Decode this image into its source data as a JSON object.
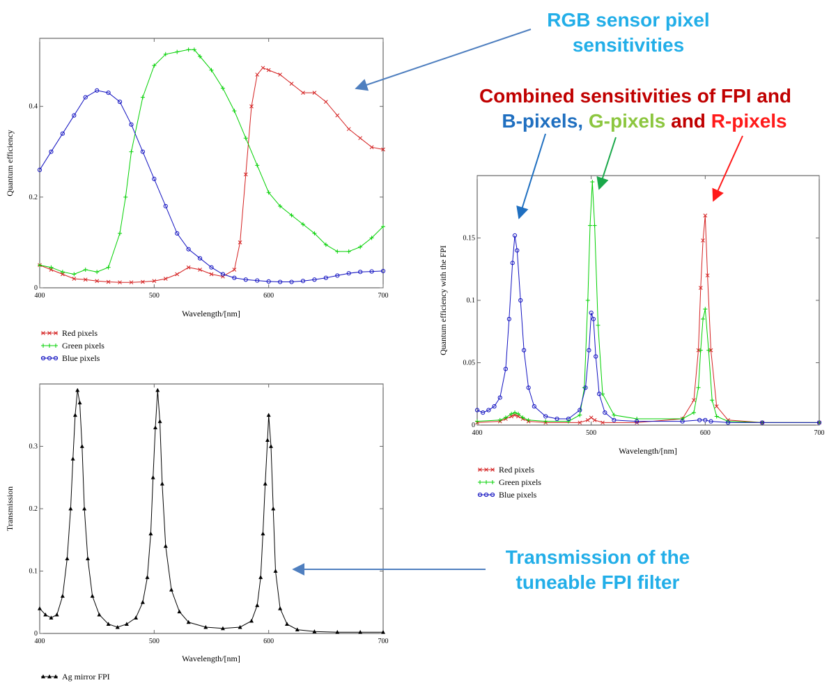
{
  "annotations": {
    "rgb_title_line1": "RGB sensor pixel",
    "rgb_title_line2": "sensitivities",
    "combined_line1": "Combined sensitivities of FPI and",
    "combined_b": "B-pixels",
    "combined_comma": ", ",
    "combined_g": "G-pixels",
    "combined_and": " and ",
    "combined_r": "R-pixels",
    "fpi_line1": "Transmission of the",
    "fpi_line2": "tuneable FPI filter",
    "colors": {
      "cyan": "#22AEE8",
      "darkred": "#C00000",
      "blue": "#1F6FC0",
      "lightgreen": "#8CC63F",
      "red": "#FF1A1A",
      "green": "#1AA84A",
      "arrow": "#4F7FBF"
    }
  },
  "chart_data": [
    {
      "id": "rgb",
      "type": "line",
      "xlabel": "Wavelength/[nm]",
      "ylabel": "Quantum efficiency",
      "xlim": [
        400,
        700
      ],
      "ylim": [
        0,
        0.55
      ],
      "xticks": [
        400,
        500,
        600,
        700
      ],
      "yticks": [
        0,
        0.2,
        0.4
      ],
      "xtick_labels": [
        "400",
        "500",
        "600",
        "700"
      ],
      "ytick_labels": [
        "0",
        "0.2",
        "0.4"
      ],
      "grid": false,
      "legend_position": "below",
      "series": [
        {
          "name": "Red pixels",
          "color": "#D42020",
          "marker": "x",
          "x": [
            400,
            410,
            420,
            430,
            440,
            450,
            460,
            470,
            480,
            490,
            500,
            510,
            520,
            530,
            540,
            550,
            560,
            570,
            575,
            580,
            585,
            590,
            595,
            600,
            610,
            620,
            630,
            640,
            650,
            660,
            670,
            680,
            690,
            700
          ],
          "y": [
            0.05,
            0.04,
            0.03,
            0.02,
            0.018,
            0.015,
            0.013,
            0.012,
            0.012,
            0.013,
            0.015,
            0.02,
            0.03,
            0.045,
            0.04,
            0.03,
            0.025,
            0.04,
            0.1,
            0.25,
            0.4,
            0.47,
            0.485,
            0.48,
            0.47,
            0.45,
            0.43,
            0.43,
            0.41,
            0.38,
            0.35,
            0.33,
            0.31,
            0.305
          ]
        },
        {
          "name": "Green pixels",
          "color": "#00D000",
          "marker": "+",
          "x": [
            400,
            410,
            420,
            430,
            440,
            450,
            460,
            470,
            475,
            480,
            490,
            500,
            510,
            520,
            530,
            535,
            540,
            550,
            560,
            570,
            580,
            590,
            600,
            610,
            620,
            630,
            640,
            650,
            660,
            670,
            680,
            690,
            700
          ],
          "y": [
            0.05,
            0.045,
            0.035,
            0.03,
            0.04,
            0.035,
            0.045,
            0.12,
            0.2,
            0.3,
            0.42,
            0.49,
            0.515,
            0.52,
            0.525,
            0.525,
            0.51,
            0.48,
            0.44,
            0.39,
            0.33,
            0.27,
            0.21,
            0.18,
            0.16,
            0.14,
            0.12,
            0.095,
            0.08,
            0.08,
            0.09,
            0.11,
            0.135
          ]
        },
        {
          "name": "Blue pixels",
          "color": "#1010C0",
          "marker": "o",
          "x": [
            400,
            410,
            420,
            430,
            440,
            450,
            460,
            470,
            480,
            490,
            500,
            510,
            520,
            530,
            540,
            550,
            560,
            570,
            580,
            590,
            600,
            610,
            620,
            630,
            640,
            650,
            660,
            670,
            680,
            690,
            700
          ],
          "y": [
            0.26,
            0.3,
            0.34,
            0.38,
            0.42,
            0.435,
            0.43,
            0.41,
            0.36,
            0.3,
            0.24,
            0.18,
            0.12,
            0.085,
            0.065,
            0.045,
            0.03,
            0.022,
            0.018,
            0.016,
            0.014,
            0.013,
            0.013,
            0.015,
            0.018,
            0.022,
            0.027,
            0.032,
            0.035,
            0.036,
            0.037
          ]
        }
      ]
    },
    {
      "id": "combined",
      "type": "line",
      "xlabel": "Wavelength/[nm]",
      "ylabel": "Quantum efficiency with the FPI",
      "xlim": [
        400,
        700
      ],
      "ylim": [
        0,
        0.2
      ],
      "xticks": [
        400,
        500,
        600,
        700
      ],
      "yticks": [
        0,
        0.05,
        0.1,
        0.15
      ],
      "xtick_labels": [
        "400",
        "500",
        "600",
        "700"
      ],
      "ytick_labels": [
        "0",
        "0.05",
        "0.1",
        "0.15"
      ],
      "grid": false,
      "legend_position": "below",
      "series": [
        {
          "name": "Red pixels",
          "color": "#D42020",
          "marker": "x",
          "x": [
            400,
            420,
            425,
            430,
            433,
            436,
            440,
            445,
            460,
            490,
            497,
            500,
            503,
            510,
            540,
            580,
            590,
            594,
            596,
            598,
            600,
            602,
            605,
            610,
            620,
            650,
            700
          ],
          "y": [
            0.002,
            0.003,
            0.005,
            0.007,
            0.008,
            0.007,
            0.005,
            0.003,
            0.002,
            0.002,
            0.004,
            0.006,
            0.004,
            0.002,
            0.002,
            0.005,
            0.02,
            0.06,
            0.11,
            0.148,
            0.168,
            0.12,
            0.06,
            0.015,
            0.004,
            0.002,
            0.002
          ]
        },
        {
          "name": "Green pixels",
          "color": "#00D000",
          "marker": "+",
          "x": [
            400,
            420,
            425,
            430,
            433,
            436,
            440,
            445,
            460,
            480,
            490,
            494,
            497,
            499,
            501,
            503,
            506,
            510,
            520,
            540,
            580,
            590,
            594,
            596,
            598,
            600,
            603,
            606,
            610,
            620,
            650,
            700
          ],
          "y": [
            0.003,
            0.004,
            0.006,
            0.009,
            0.01,
            0.009,
            0.006,
            0.004,
            0.003,
            0.003,
            0.008,
            0.03,
            0.1,
            0.16,
            0.195,
            0.16,
            0.08,
            0.025,
            0.008,
            0.005,
            0.005,
            0.01,
            0.03,
            0.06,
            0.085,
            0.093,
            0.06,
            0.02,
            0.007,
            0.003,
            0.002,
            0.002
          ]
        },
        {
          "name": "Blue pixels",
          "color": "#1010C0",
          "marker": "o",
          "x": [
            400,
            405,
            410,
            415,
            420,
            425,
            428,
            431,
            433,
            435,
            438,
            441,
            445,
            450,
            460,
            470,
            480,
            490,
            495,
            498,
            500,
            502,
            504,
            507,
            512,
            520,
            540,
            580,
            595,
            600,
            605,
            620,
            650,
            700
          ],
          "y": [
            0.012,
            0.01,
            0.012,
            0.015,
            0.022,
            0.045,
            0.085,
            0.13,
            0.152,
            0.14,
            0.1,
            0.06,
            0.03,
            0.015,
            0.007,
            0.005,
            0.005,
            0.012,
            0.03,
            0.06,
            0.09,
            0.085,
            0.055,
            0.025,
            0.01,
            0.004,
            0.003,
            0.003,
            0.004,
            0.004,
            0.003,
            0.002,
            0.002,
            0.002
          ]
        }
      ]
    },
    {
      "id": "fpi",
      "type": "line",
      "xlabel": "Wavelength/[nm]",
      "ylabel": "Transmission",
      "xlim": [
        400,
        700
      ],
      "ylim": [
        0,
        0.4
      ],
      "xticks": [
        400,
        500,
        600,
        700
      ],
      "yticks": [
        0,
        0.1,
        0.2,
        0.3
      ],
      "xtick_labels": [
        "400",
        "500",
        "600",
        "700"
      ],
      "ytick_labels": [
        "0",
        "0.1",
        "0.2",
        "0.3"
      ],
      "grid": false,
      "legend_position": "below",
      "series": [
        {
          "name": "Ag mirror FPI",
          "color": "#000000",
          "marker": "triangle",
          "x": [
            400,
            405,
            410,
            415,
            420,
            424,
            427,
            429,
            431,
            433,
            435,
            437,
            439,
            442,
            446,
            452,
            460,
            468,
            476,
            484,
            490,
            494,
            497,
            499,
            501,
            503,
            505,
            507,
            510,
            515,
            522,
            530,
            545,
            560,
            575,
            585,
            590,
            593,
            595,
            597,
            599,
            600,
            602,
            604,
            606,
            610,
            616,
            625,
            640,
            660,
            680,
            700
          ],
          "y": [
            0.04,
            0.03,
            0.025,
            0.03,
            0.06,
            0.12,
            0.2,
            0.28,
            0.35,
            0.39,
            0.37,
            0.3,
            0.2,
            0.12,
            0.06,
            0.03,
            0.015,
            0.01,
            0.015,
            0.025,
            0.05,
            0.09,
            0.16,
            0.25,
            0.33,
            0.39,
            0.34,
            0.24,
            0.14,
            0.07,
            0.035,
            0.018,
            0.01,
            0.008,
            0.01,
            0.02,
            0.045,
            0.09,
            0.16,
            0.24,
            0.31,
            0.35,
            0.3,
            0.2,
            0.1,
            0.04,
            0.015,
            0.006,
            0.003,
            0.002,
            0.002,
            0.002
          ]
        }
      ]
    }
  ]
}
